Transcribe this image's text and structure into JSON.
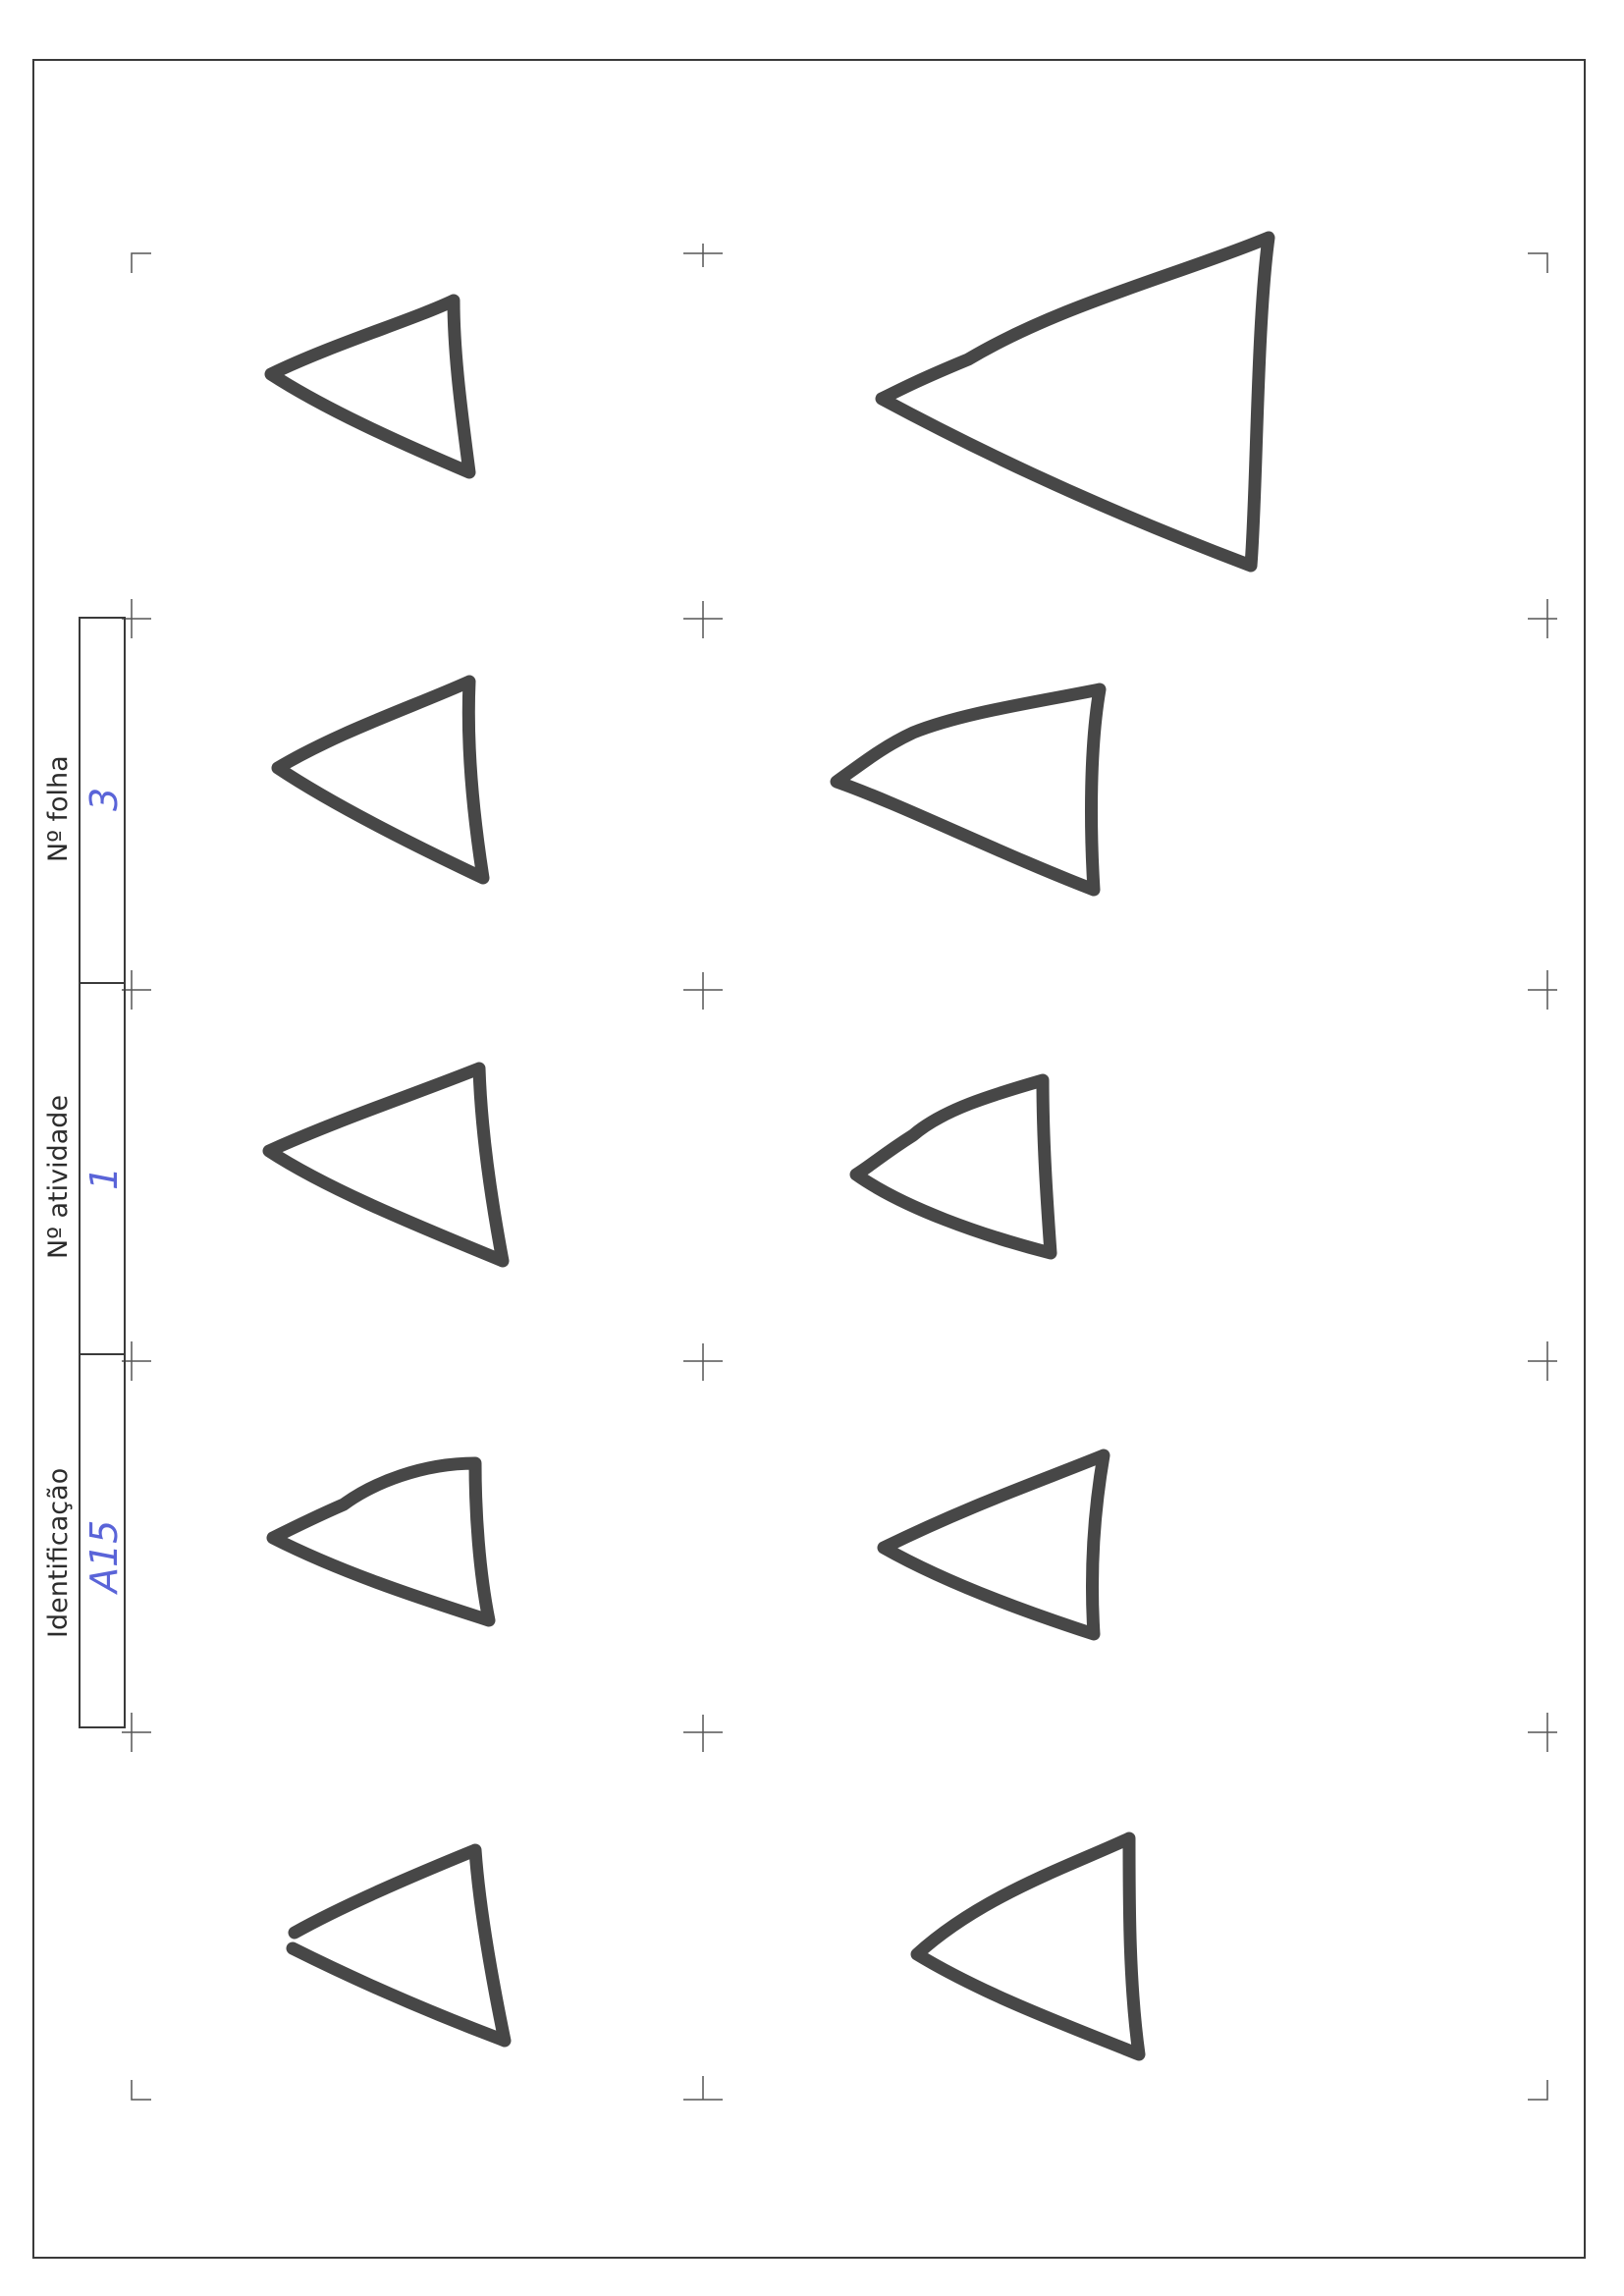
{
  "form": {
    "fields": [
      {
        "label": "Nº folha",
        "value": "3"
      },
      {
        "label": "Nº atividade",
        "value": "1"
      },
      {
        "label": "Identificação",
        "value": "A15"
      }
    ]
  },
  "drawing": {
    "description_icon": "hand-drawn-triangle-icon",
    "stroke_color": "#444444",
    "triangle_count": 10
  }
}
